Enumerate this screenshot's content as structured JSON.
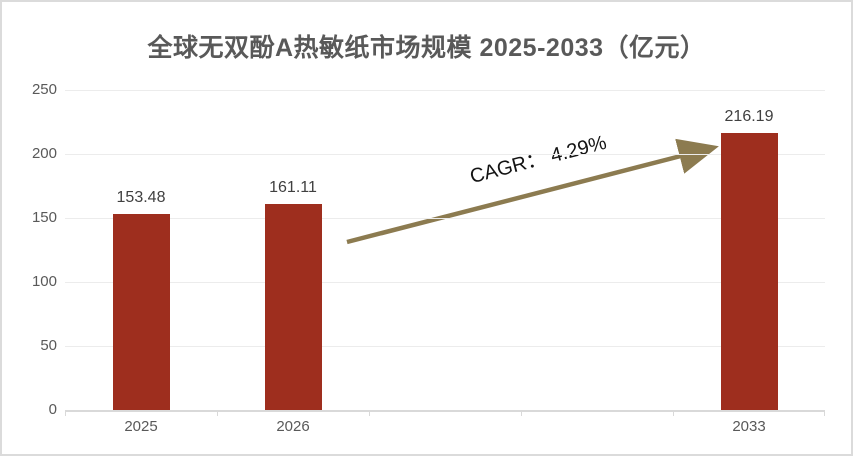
{
  "title": "全球无双酚A热敏纸市场规模 2025-2033（亿元）",
  "annotation": {
    "cagr_label": "CAGR： 4.29%"
  },
  "colors": {
    "bar": "#9E2E1E",
    "arrow": "#8C7B50",
    "title_text": "#595959",
    "axis_text": "#595959",
    "gridline": "#ECECEC",
    "axis_line": "#D9D9D9"
  },
  "chart_data": {
    "type": "bar",
    "title": "全球无双酚A热敏纸市场规模 2025-2033（亿元）",
    "categories": [
      "2025",
      "2026",
      "2033"
    ],
    "values": [
      153.48,
      161.11,
      216.19
    ],
    "value_labels": [
      "153.48",
      "161.11",
      "216.19"
    ],
    "slot_index": [
      0,
      1,
      4
    ],
    "num_slots": 5,
    "xlabel": "",
    "ylabel": "",
    "ylim": [
      0,
      250
    ],
    "y_ticks": [
      0,
      50,
      100,
      150,
      200,
      250
    ],
    "grid": true,
    "legend": false,
    "annotation": "CAGR： 4.29%",
    "bar_color": "#9E2E1E",
    "annotation_arrow_color": "#8C7B50"
  }
}
